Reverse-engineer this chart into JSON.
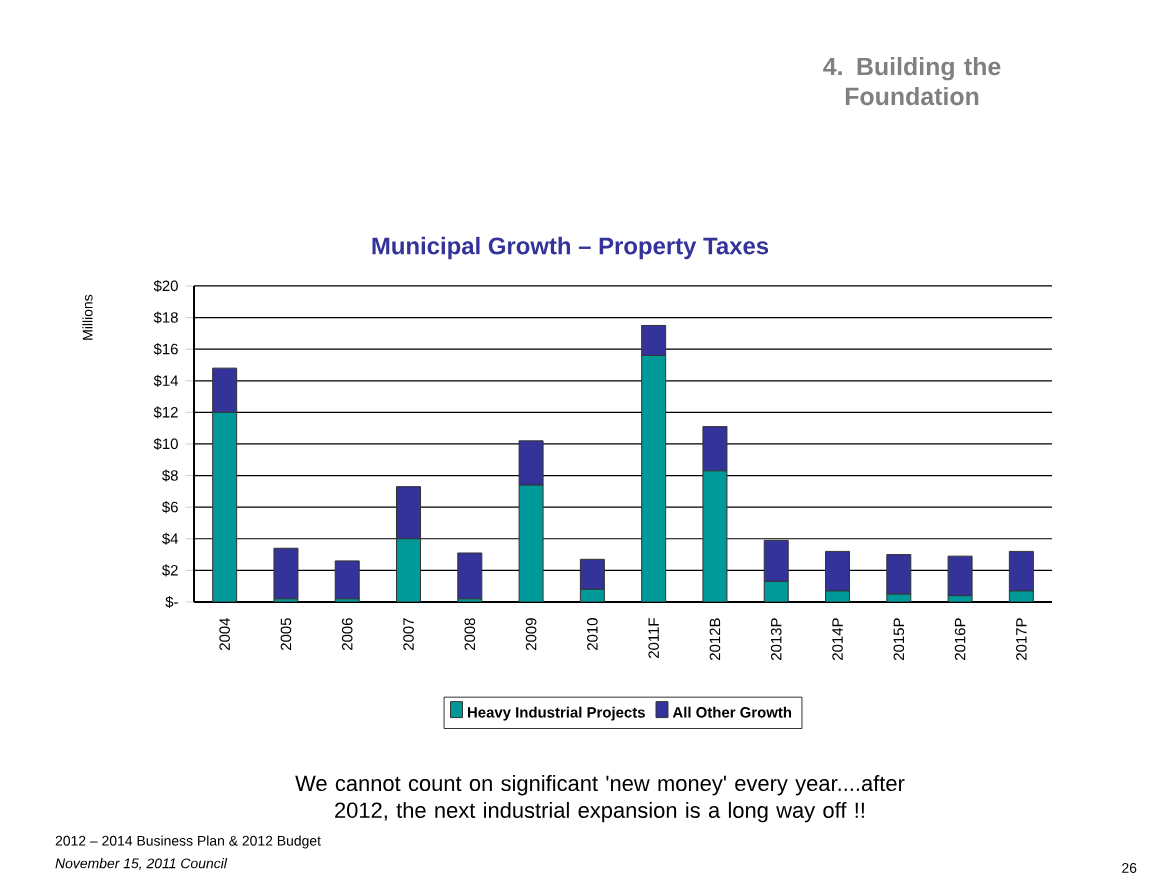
{
  "chart_data": {
    "type": "bar",
    "stacked": true,
    "title": "Municipal Growth – Property Taxes",
    "ylabel": "Millions",
    "categories": [
      "2004",
      "2005",
      "2006",
      "2007",
      "2008",
      "2009",
      "2010",
      "2011F",
      "2012B",
      "2013P",
      "2014P",
      "2015P",
      "2016P",
      "2017P"
    ],
    "series": [
      {
        "name": "Heavy Industrial Projects",
        "color": "#009999",
        "values": [
          12.0,
          0.2,
          0.2,
          4.0,
          0.2,
          7.4,
          0.8,
          15.6,
          8.3,
          1.3,
          0.7,
          0.5,
          0.4,
          0.7
        ]
      },
      {
        "name": "All Other Growth",
        "color": "#333399",
        "values": [
          2.8,
          3.2,
          2.4,
          3.3,
          2.9,
          2.8,
          1.9,
          1.9,
          2.8,
          2.6,
          2.5,
          2.5,
          2.5,
          2.5
        ]
      }
    ],
    "ylim": [
      0,
      20
    ],
    "yticks": [
      {
        "value": 0,
        "label": "$-"
      },
      {
        "value": 2,
        "label": "$2"
      },
      {
        "value": 4,
        "label": "$4"
      },
      {
        "value": 6,
        "label": "$6"
      },
      {
        "value": 8,
        "label": "$8"
      },
      {
        "value": 10,
        "label": "$10"
      },
      {
        "value": 12,
        "label": "$12"
      },
      {
        "value": 14,
        "label": "$14"
      },
      {
        "value": 16,
        "label": "$16"
      },
      {
        "value": 18,
        "label": "$18"
      },
      {
        "value": 20,
        "label": "$20"
      }
    ],
    "grid": "y",
    "legend": "bottom",
    "annotations": [
      "4. Building the Foundation",
      "We cannot count on significant 'new money' every year....after 2012, the next industrial expansion is a long way off !!",
      "2012 – 2014 Business Plan & 2012 Budget",
      "November 15, 2011 Council",
      "26"
    ]
  }
}
